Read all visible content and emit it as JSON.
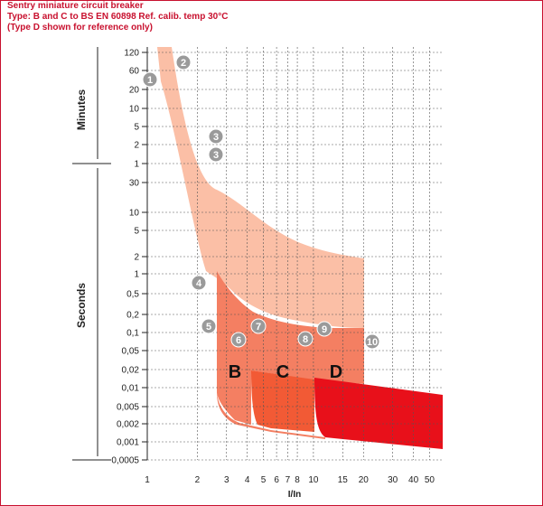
{
  "header": {
    "line1": "Sentry miniature circuit breaker",
    "line2": "Type: B and C to BS EN 60898 Ref. calib. temp 30°C",
    "line3": "(Type D shown for reference only)"
  },
  "colors": {
    "brand": "#c8102e",
    "thermal_band": "#fbbfa6",
    "type_b": "#f47f62",
    "type_c": "#f25a35",
    "type_d": "#e8101a"
  },
  "chart_data": {
    "type": "area",
    "xlabel": "I/In",
    "x_scale": "log",
    "xlim": [
      1,
      60
    ],
    "x_ticks": [
      {
        "value": 1,
        "label": "1"
      },
      {
        "value": 2,
        "label": "2"
      },
      {
        "value": 3,
        "label": "3"
      },
      {
        "value": 4,
        "label": "4"
      },
      {
        "value": 5,
        "label": "5"
      },
      {
        "value": 6,
        "label": "6"
      },
      {
        "value": 7,
        "label": "7"
      },
      {
        "value": 8,
        "label": "8"
      },
      {
        "value": 10,
        "label": "10"
      },
      {
        "value": 15,
        "label": "15"
      },
      {
        "value": 20,
        "label": "20"
      },
      {
        "value": 30,
        "label": "30"
      },
      {
        "value": 40,
        "label": "40"
      },
      {
        "value": 50,
        "label": "50"
      }
    ],
    "y_groups": [
      {
        "label": "Minutes",
        "ticks": [
          "120",
          "60",
          "20",
          "10",
          "5",
          "2",
          "1"
        ]
      },
      {
        "label": "Seconds",
        "ticks": [
          "30",
          "10",
          "5",
          "2",
          "1",
          "0,5",
          "0,2",
          "0,1",
          "0,05",
          "0,02",
          "0,01",
          "0,005",
          "0,002",
          "0,001",
          "0,0005"
        ]
      }
    ],
    "grid": true,
    "regions": [
      {
        "name": "B",
        "x_range": [
          3,
          5
        ]
      },
      {
        "name": "C",
        "x_range": [
          5,
          10
        ]
      },
      {
        "name": "D",
        "x_range": [
          10,
          50
        ]
      }
    ],
    "markers": [
      "1",
      "2",
      "3",
      "3",
      "4",
      "5",
      "6",
      "7",
      "8",
      "9",
      "10"
    ]
  }
}
